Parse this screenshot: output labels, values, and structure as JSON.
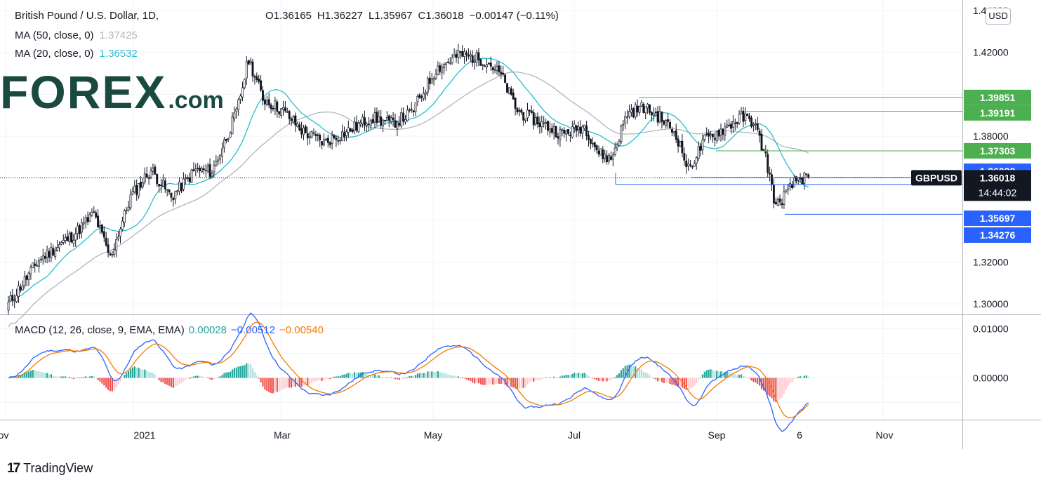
{
  "header": {
    "symbol_title": "British Pound / U.S. Dollar, 1D,",
    "ohlc": {
      "open": "O1.36165",
      "high": "H1.36227",
      "low": "L1.35967",
      "close": "C1.36018",
      "change": "−0.00147 (−0.11%)"
    },
    "ma50_label": "MA (50, close, 0)",
    "ma50_value": "1.37425",
    "ma20_label": "MA (20, close, 0)",
    "ma20_value": "1.36532",
    "currency_button": "USD"
  },
  "logo": {
    "brand": "FOREX",
    "suffix": ".com"
  },
  "footer": {
    "brand": "TradingView",
    "mark": "17"
  },
  "macd_legend": {
    "label": "MACD (12, 26, close, 9, EMA, EMA)",
    "hist": "0.00028",
    "macd": "−0.00512",
    "signal": "−0.00540"
  },
  "colors": {
    "up": "#26a69a",
    "down": "#ef5350",
    "candle": "#131722",
    "ma20": "#2bbccc",
    "ma50": "#b2b5be",
    "macd": "#2962ff",
    "signal": "#f57c00",
    "support": "#2962ff",
    "resistance": "#4caf50"
  },
  "chart_data": [
    {
      "type": "candlestick",
      "title": "British Pound / U.S. Dollar, 1D",
      "ylim": [
        1.295,
        1.445
      ],
      "yticks": [
        "1.30000",
        "1.32000",
        "1.38000",
        "1.42000",
        "1.44000"
      ],
      "xticks": [
        "Nov",
        "2021",
        "Mar",
        "May",
        "Jul",
        "Sep",
        "6",
        "Nov"
      ],
      "anchors": [
        {
          "t": 0,
          "c": 1.3
        },
        {
          "t": 15,
          "c": 1.321
        },
        {
          "t": 32,
          "c": 1.333
        },
        {
          "t": 42,
          "c": 1.343
        },
        {
          "t": 50,
          "c": 1.322
        },
        {
          "t": 60,
          "c": 1.351
        },
        {
          "t": 70,
          "c": 1.364
        },
        {
          "t": 80,
          "c": 1.351
        },
        {
          "t": 92,
          "c": 1.364
        },
        {
          "t": 100,
          "c": 1.363
        },
        {
          "t": 112,
          "c": 1.391
        },
        {
          "t": 118,
          "c": 1.417
        },
        {
          "t": 125,
          "c": 1.398
        },
        {
          "t": 135,
          "c": 1.392
        },
        {
          "t": 145,
          "c": 1.382
        },
        {
          "t": 155,
          "c": 1.377
        },
        {
          "t": 168,
          "c": 1.383
        },
        {
          "t": 178,
          "c": 1.389
        },
        {
          "t": 188,
          "c": 1.386
        },
        {
          "t": 198,
          "c": 1.391
        },
        {
          "t": 210,
          "c": 1.412
        },
        {
          "t": 222,
          "c": 1.419
        },
        {
          "t": 235,
          "c": 1.416
        },
        {
          "t": 242,
          "c": 1.409
        },
        {
          "t": 250,
          "c": 1.392
        },
        {
          "t": 262,
          "c": 1.386
        },
        {
          "t": 272,
          "c": 1.381
        },
        {
          "t": 283,
          "c": 1.385
        },
        {
          "t": 290,
          "c": 1.372
        },
        {
          "t": 296,
          "c": 1.369
        },
        {
          "t": 304,
          "c": 1.391
        },
        {
          "t": 312,
          "c": 1.394
        },
        {
          "t": 320,
          "c": 1.389
        },
        {
          "t": 328,
          "c": 1.381
        },
        {
          "t": 334,
          "c": 1.364
        },
        {
          "t": 342,
          "c": 1.378
        },
        {
          "t": 352,
          "c": 1.384
        },
        {
          "t": 360,
          "c": 1.389
        },
        {
          "t": 366,
          "c": 1.387
        },
        {
          "t": 372,
          "c": 1.37
        },
        {
          "t": 377,
          "c": 1.346
        },
        {
          "t": 382,
          "c": 1.353
        },
        {
          "t": 388,
          "c": 1.36
        },
        {
          "t": 393,
          "c": 1.36
        }
      ],
      "levels": [
        {
          "value": 1.39851,
          "label": "1.39851",
          "kind": "resistance"
        },
        {
          "value": 1.39191,
          "label": "1.39191",
          "kind": "resistance"
        },
        {
          "value": 1.37303,
          "label": "1.37303",
          "kind": "resistance"
        },
        {
          "value": 1.36032,
          "label": "1.36032",
          "kind": "support"
        },
        {
          "value": 1.35697,
          "label": "1.35697",
          "kind": "support"
        },
        {
          "value": 1.34276,
          "label": "1.34276",
          "kind": "support"
        }
      ],
      "series": [
        {
          "name": "MA (50, close, 0)",
          "last": 1.37425
        },
        {
          "name": "MA (20, close, 0)",
          "last": 1.36532
        }
      ],
      "last_price": {
        "symbol": "GBPUSD",
        "value": "1.36018",
        "countdown": "14:44:02"
      }
    },
    {
      "type": "line",
      "title": "MACD (12, 26, close, 9, EMA, EMA)",
      "ylim": [
        -0.0085,
        0.0128
      ],
      "yticks": [
        "0.01000",
        "0.00000"
      ],
      "series": [
        {
          "name": "MACD",
          "last": -0.00512
        },
        {
          "name": "Signal",
          "last": -0.0054
        },
        {
          "name": "Histogram",
          "last": 0.00028
        }
      ]
    }
  ]
}
